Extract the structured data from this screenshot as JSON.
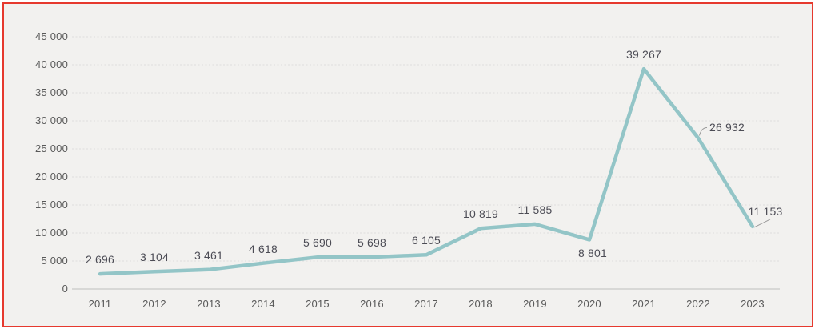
{
  "style": {
    "frame_border_color": "#e6392e",
    "chart_background": "#f2f1ef",
    "line_color": "#93c5c7",
    "grid_color": "#dddddc",
    "baseline_color": "#c9c9c7",
    "axis_text_color": "#595959",
    "data_label_color": "#4c4c55",
    "leader_color": "#9a9a9a"
  },
  "chart_data": {
    "type": "line",
    "title": "",
    "xlabel": "",
    "ylabel": "",
    "categories": [
      "2011",
      "2012",
      "2013",
      "2014",
      "2015",
      "2016",
      "2017",
      "2018",
      "2019",
      "2020",
      "2021",
      "2022",
      "2023"
    ],
    "series": [
      {
        "name": "",
        "values": [
          2696,
          3104,
          3461,
          4618,
          5690,
          5698,
          6105,
          10819,
          11585,
          8801,
          39267,
          26932,
          11153
        ]
      }
    ],
    "value_labels": [
      "2 696",
      "3 104",
      "3 461",
      "4 618",
      "5 690",
      "5 698",
      "6 105",
      "10 819",
      "11 585",
      "8 801",
      "39 267",
      "26 932",
      "11 153"
    ],
    "label_placements": [
      "above",
      "above",
      "above",
      "above",
      "above",
      "above",
      "above",
      "above",
      "above",
      "below",
      "above",
      "right-leader",
      "rightup-leader"
    ],
    "ylim": [
      0,
      45000
    ],
    "ytick_interval": 5000,
    "ytick_labels": [
      "0",
      "5 000",
      "10 000",
      "15 000",
      "20 000",
      "25 000",
      "30 000",
      "35 000",
      "40 000",
      "45 000"
    ],
    "grid": true,
    "legend": "none"
  }
}
